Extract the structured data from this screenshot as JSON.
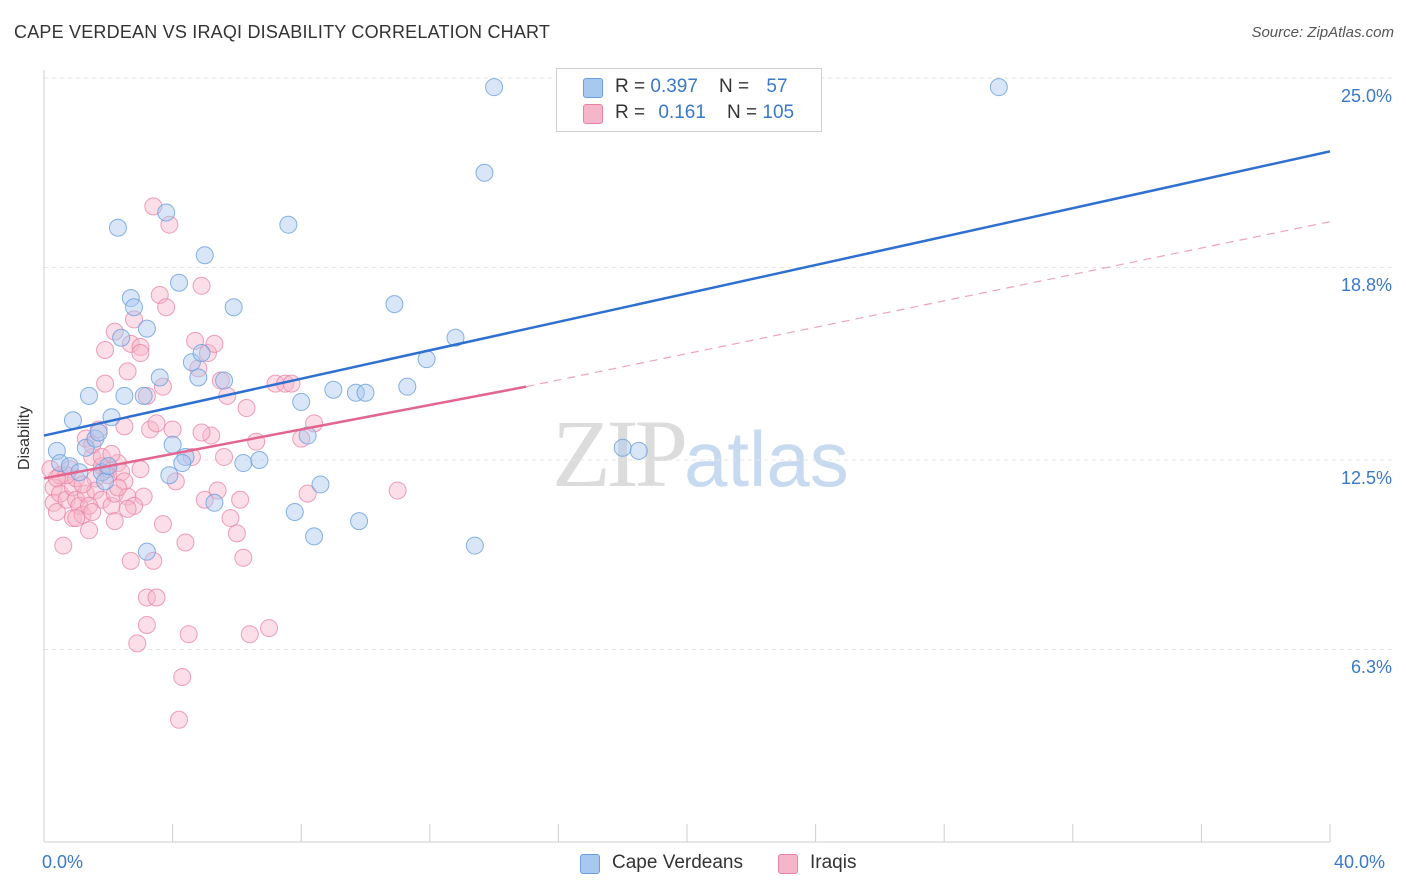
{
  "header": {
    "title": "CAPE VERDEAN VS IRAQI DISABILITY CORRELATION CHART",
    "source": "Source: ZipAtlas.com"
  },
  "watermark": {
    "zip": "ZIP",
    "atlas": "atlas"
  },
  "legend": {
    "rows": [
      {
        "r_label": "R = ",
        "r_value": "0.397",
        "n_label": "N = ",
        "n_value": "57",
        "color": "#a9c8ef"
      },
      {
        "r_label": "R = ",
        "r_value": "0.161",
        "n_label": "N = ",
        "n_value": "105",
        "color": "#f6b6ca"
      }
    ]
  },
  "bottom_legend": [
    {
      "label": "Cape Verdeans",
      "color": "#a9c8ef"
    },
    {
      "label": "Iraqis",
      "color": "#f6b6ca"
    }
  ],
  "colors": {
    "blue_point_fill": "#a9c8ef",
    "blue_point_stroke": "#6a9fdc",
    "blue_line": "#2f6fd0",
    "pink_point_fill": "#f6b6ca",
    "pink_point_stroke": "#e882a4",
    "pink_line": "#e3668f",
    "tick_label": "#3a78c9",
    "grid": "#e6e6e6"
  },
  "chart_data": {
    "type": "scatter",
    "title": "CAPE VERDEAN VS IRAQI DISABILITY CORRELATION CHART",
    "xlabel": "",
    "ylabel": "Disability",
    "xlim": [
      0,
      40
    ],
    "ylim": [
      0,
      26
    ],
    "x_tick_labels": [
      "0.0%",
      "40.0%"
    ],
    "x_tick_values": [
      0,
      40
    ],
    "y_ticks": [
      {
        "value": 6.3,
        "label": "6.3%"
      },
      {
        "value": 12.5,
        "label": "12.5%"
      },
      {
        "value": 18.8,
        "label": "18.8%"
      },
      {
        "value": 25.0,
        "label": "25.0%"
      }
    ],
    "grid": true,
    "legend_position": "top-center",
    "series": [
      {
        "name": "Cape Verdeans",
        "r": 0.397,
        "n": 57,
        "trend": {
          "x": [
            0,
            40
          ],
          "y": [
            13.3,
            22.6
          ],
          "style": "solid"
        },
        "points": [
          [
            0.4,
            12.8
          ],
          [
            0.5,
            12.4
          ],
          [
            0.8,
            12.3
          ],
          [
            0.9,
            13.8
          ],
          [
            1.1,
            12.1
          ],
          [
            1.3,
            12.9
          ],
          [
            1.4,
            14.6
          ],
          [
            1.6,
            13.2
          ],
          [
            1.7,
            13.4
          ],
          [
            1.8,
            12.1
          ],
          [
            1.9,
            11.8
          ],
          [
            2.0,
            12.3
          ],
          [
            2.1,
            13.9
          ],
          [
            2.3,
            20.1
          ],
          [
            2.4,
            16.5
          ],
          [
            2.5,
            14.6
          ],
          [
            2.7,
            17.8
          ],
          [
            2.8,
            17.5
          ],
          [
            3.1,
            14.6
          ],
          [
            3.2,
            16.8
          ],
          [
            3.2,
            9.5
          ],
          [
            3.6,
            15.2
          ],
          [
            3.8,
            20.6
          ],
          [
            3.9,
            12.0
          ],
          [
            4.0,
            13.0
          ],
          [
            4.2,
            18.3
          ],
          [
            4.4,
            12.6
          ],
          [
            4.6,
            15.7
          ],
          [
            4.8,
            15.2
          ],
          [
            4.9,
            16.0
          ],
          [
            5.0,
            19.2
          ],
          [
            5.3,
            11.1
          ],
          [
            5.6,
            15.1
          ],
          [
            5.9,
            17.5
          ],
          [
            6.2,
            12.4
          ],
          [
            6.7,
            12.5
          ],
          [
            7.6,
            20.2
          ],
          [
            7.8,
            10.8
          ],
          [
            8.0,
            14.4
          ],
          [
            8.2,
            13.3
          ],
          [
            8.4,
            10.0
          ],
          [
            8.6,
            11.7
          ],
          [
            9.0,
            14.8
          ],
          [
            9.7,
            14.7
          ],
          [
            10.0,
            14.7
          ],
          [
            10.9,
            17.6
          ],
          [
            11.3,
            14.9
          ],
          [
            11.9,
            15.8
          ],
          [
            12.8,
            16.5
          ],
          [
            13.4,
            9.7
          ],
          [
            13.7,
            21.9
          ],
          [
            14.0,
            24.7
          ],
          [
            18.0,
            12.9
          ],
          [
            18.5,
            12.8
          ],
          [
            29.7,
            24.7
          ],
          [
            9.8,
            10.5
          ],
          [
            4.3,
            12.4
          ]
        ]
      },
      {
        "name": "Iraqis",
        "r": 0.161,
        "n": 105,
        "trend": {
          "x": [
            0,
            15
          ],
          "y": [
            11.9,
            14.9
          ],
          "style": "solid",
          "extension": {
            "x": [
              15,
              40
            ],
            "y": [
              14.9,
              20.3
            ],
            "style": "dashed"
          }
        },
        "points": [
          [
            0.2,
            12.2
          ],
          [
            0.3,
            11.6
          ],
          [
            0.3,
            11.1
          ],
          [
            0.4,
            10.8
          ],
          [
            0.5,
            11.4
          ],
          [
            0.5,
            12.0
          ],
          [
            0.6,
            9.7
          ],
          [
            0.7,
            11.2
          ],
          [
            0.8,
            12.2
          ],
          [
            0.9,
            11.6
          ],
          [
            0.9,
            10.6
          ],
          [
            1.0,
            11.2
          ],
          [
            1.0,
            11.9
          ],
          [
            1.1,
            11.0
          ],
          [
            1.2,
            10.7
          ],
          [
            1.3,
            11.4
          ],
          [
            1.3,
            13.2
          ],
          [
            1.4,
            10.2
          ],
          [
            1.5,
            12.6
          ],
          [
            1.5,
            13.0
          ],
          [
            1.6,
            11.9
          ],
          [
            1.6,
            11.5
          ],
          [
            1.7,
            13.5
          ],
          [
            1.8,
            12.3
          ],
          [
            1.8,
            11.2
          ],
          [
            1.9,
            15.0
          ],
          [
            1.9,
            16.1
          ],
          [
            2.0,
            12.0
          ],
          [
            2.0,
            12.2
          ],
          [
            2.1,
            11.0
          ],
          [
            2.2,
            10.5
          ],
          [
            2.2,
            11.4
          ],
          [
            2.2,
            16.7
          ],
          [
            2.3,
            12.4
          ],
          [
            2.4,
            12.1
          ],
          [
            2.5,
            11.8
          ],
          [
            2.5,
            13.6
          ],
          [
            2.6,
            11.3
          ],
          [
            2.6,
            15.4
          ],
          [
            2.7,
            9.2
          ],
          [
            2.7,
            16.3
          ],
          [
            2.8,
            17.1
          ],
          [
            2.9,
            6.5
          ],
          [
            3.0,
            16.2
          ],
          [
            3.0,
            16.0
          ],
          [
            3.1,
            11.3
          ],
          [
            3.2,
            8.0
          ],
          [
            3.2,
            7.1
          ],
          [
            3.2,
            14.6
          ],
          [
            3.3,
            13.5
          ],
          [
            3.4,
            9.2
          ],
          [
            3.5,
            13.7
          ],
          [
            3.5,
            8.0
          ],
          [
            3.6,
            17.9
          ],
          [
            3.7,
            14.9
          ],
          [
            3.8,
            17.5
          ],
          [
            3.9,
            20.2
          ],
          [
            4.0,
            13.5
          ],
          [
            4.2,
            4.0
          ],
          [
            4.3,
            5.4
          ],
          [
            4.4,
            9.8
          ],
          [
            4.5,
            6.8
          ],
          [
            4.6,
            12.6
          ],
          [
            4.7,
            16.4
          ],
          [
            4.8,
            15.5
          ],
          [
            4.9,
            18.2
          ],
          [
            5.0,
            11.2
          ],
          [
            5.1,
            16.0
          ],
          [
            5.2,
            13.3
          ],
          [
            5.3,
            16.3
          ],
          [
            5.4,
            11.5
          ],
          [
            5.5,
            15.1
          ],
          [
            5.6,
            12.6
          ],
          [
            5.7,
            14.6
          ],
          [
            5.8,
            10.6
          ],
          [
            6.0,
            10.1
          ],
          [
            6.1,
            11.2
          ],
          [
            6.2,
            9.3
          ],
          [
            6.3,
            14.2
          ],
          [
            6.4,
            6.8
          ],
          [
            6.6,
            13.1
          ],
          [
            7.0,
            7.0
          ],
          [
            7.2,
            15.0
          ],
          [
            7.5,
            15.0
          ],
          [
            7.7,
            15.0
          ],
          [
            8.0,
            13.2
          ],
          [
            8.2,
            11.4
          ],
          [
            8.4,
            13.7
          ],
          [
            11.0,
            11.5
          ],
          [
            1.2,
            11.7
          ],
          [
            0.7,
            12.0
          ],
          [
            1.4,
            11.0
          ],
          [
            2.8,
            11.0
          ],
          [
            3.0,
            12.2
          ],
          [
            3.4,
            20.8
          ],
          [
            4.1,
            11.8
          ],
          [
            1.0,
            10.6
          ],
          [
            1.8,
            12.6
          ],
          [
            2.3,
            11.6
          ],
          [
            2.6,
            10.9
          ],
          [
            3.7,
            10.4
          ],
          [
            4.9,
            13.4
          ],
          [
            0.4,
            11.9
          ],
          [
            1.5,
            10.8
          ],
          [
            2.1,
            12.7
          ]
        ]
      }
    ]
  }
}
